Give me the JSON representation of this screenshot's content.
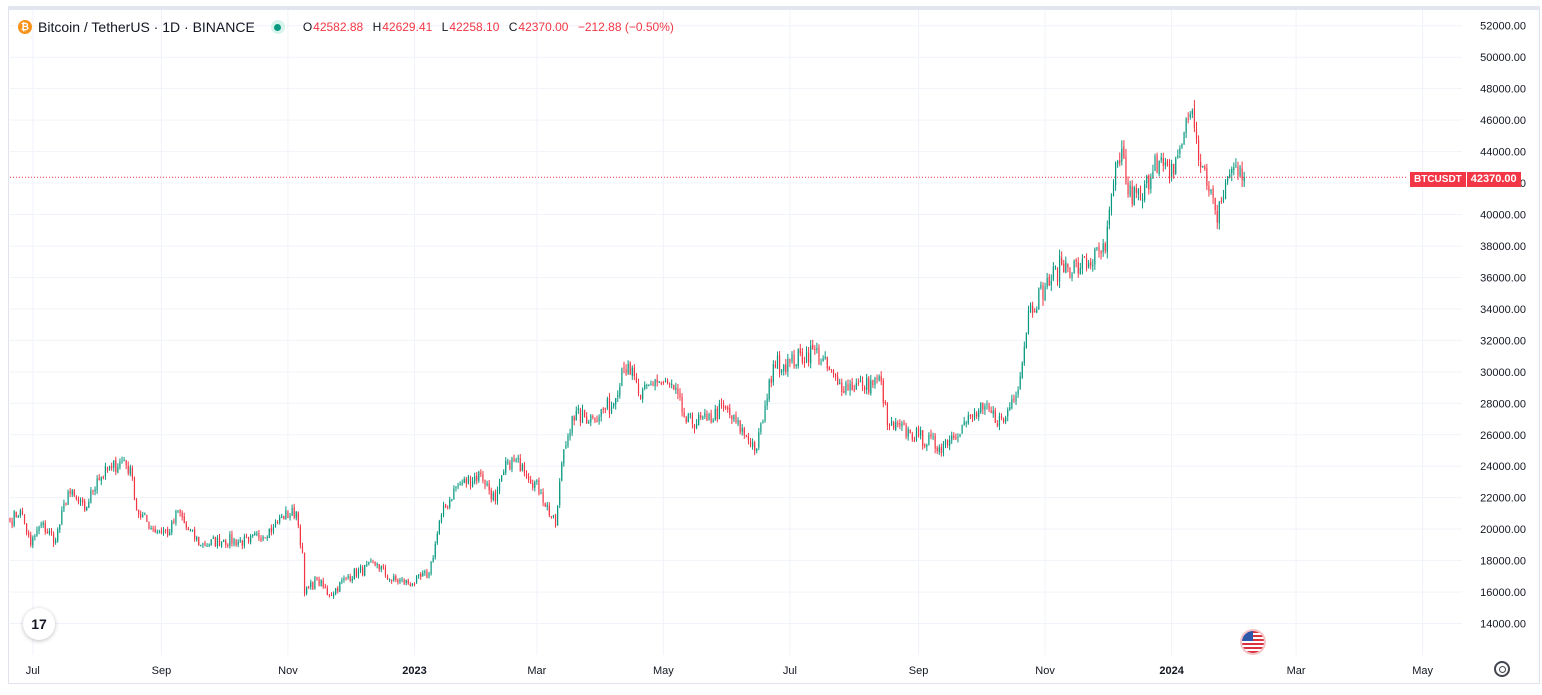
{
  "header": {
    "symbol_title": "Bitcoin / TetherUS · 1D · BINANCE",
    "coin_icon_glyph": "₿",
    "ohlc": {
      "open_key": "O",
      "open": "42582.88",
      "high_key": "H",
      "high": "42629.41",
      "low_key": "L",
      "low": "42258.10",
      "close_key": "C",
      "close": "42370.00",
      "change": "−212.88 (−0.50%)"
    }
  },
  "price_badge": {
    "symbol": "BTCUSDT",
    "value": "42370.00"
  },
  "logo_text": "17",
  "icons": [
    "bitcoin-icon",
    "status-dot-icon",
    "tradingview-logo-icon",
    "us-flag-icon",
    "settings-icon"
  ],
  "colors": {
    "up": "#089981",
    "down": "#f23645",
    "grid": "#f0f3fa",
    "text": "#131722"
  },
  "chart_data": {
    "type": "candlestick",
    "ylim": [
      12000,
      53000
    ],
    "y_ticks": [
      14000,
      16000,
      18000,
      20000,
      22000,
      24000,
      26000,
      28000,
      30000,
      32000,
      34000,
      36000,
      38000,
      40000,
      42000,
      44000,
      46000,
      48000,
      50000,
      52000
    ],
    "y_tick_labels": [
      "14000.00",
      "16000.00",
      "18000.00",
      "20000.00",
      "22000.00",
      "24000.00",
      "26000.00",
      "28000.00",
      "30000.00",
      "32000.00",
      "34000.00",
      "36000.00",
      "38000.00",
      "40000.00",
      "42000.00",
      "44000.00",
      "46000.00",
      "48000.00",
      "50000.00",
      "52000.00"
    ],
    "x_start": "2022-06-20",
    "x_end": "2024-05-20",
    "x_ticks": [
      {
        "date": "2022-07-01",
        "label": "Jul",
        "bold": false
      },
      {
        "date": "2022-09-01",
        "label": "Sep",
        "bold": false
      },
      {
        "date": "2022-11-01",
        "label": "Nov",
        "bold": false
      },
      {
        "date": "2023-01-01",
        "label": "2023",
        "bold": true
      },
      {
        "date": "2023-03-01",
        "label": "Mar",
        "bold": false
      },
      {
        "date": "2023-05-01",
        "label": "May",
        "bold": false
      },
      {
        "date": "2023-07-01",
        "label": "Jul",
        "bold": false
      },
      {
        "date": "2023-09-01",
        "label": "Sep",
        "bold": false
      },
      {
        "date": "2023-11-01",
        "label": "Nov",
        "bold": false
      },
      {
        "date": "2024-01-01",
        "label": "2024",
        "bold": true
      },
      {
        "date": "2024-03-01",
        "label": "Mar",
        "bold": false
      },
      {
        "date": "2024-05-01",
        "label": "May",
        "bold": false
      }
    ],
    "last_price": 42370.0,
    "series_close_anchors": [
      [
        "2022-06-20",
        20500
      ],
      [
        "2022-06-25",
        21200
      ],
      [
        "2022-06-30",
        19000
      ],
      [
        "2022-07-05",
        20300
      ],
      [
        "2022-07-12",
        19300
      ],
      [
        "2022-07-18",
        22400
      ],
      [
        "2022-07-26",
        21200
      ],
      [
        "2022-08-01",
        23200
      ],
      [
        "2022-08-08",
        23900
      ],
      [
        "2022-08-14",
        24400
      ],
      [
        "2022-08-18",
        23300
      ],
      [
        "2022-08-20",
        21200
      ],
      [
        "2022-08-28",
        20000
      ],
      [
        "2022-09-05",
        19800
      ],
      [
        "2022-09-09",
        21200
      ],
      [
        "2022-09-13",
        20100
      ],
      [
        "2022-09-20",
        19000
      ],
      [
        "2022-10-01",
        19300
      ],
      [
        "2022-10-13",
        19200
      ],
      [
        "2022-10-25",
        20100
      ],
      [
        "2022-10-29",
        20800
      ],
      [
        "2022-11-05",
        21100
      ],
      [
        "2022-11-08",
        18500
      ],
      [
        "2022-11-09",
        15900
      ],
      [
        "2022-11-15",
        16800
      ],
      [
        "2022-11-21",
        15800
      ],
      [
        "2022-11-30",
        17000
      ],
      [
        "2022-12-14",
        17800
      ],
      [
        "2022-12-20",
        16800
      ],
      [
        "2022-12-31",
        16550
      ],
      [
        "2023-01-08",
        17200
      ],
      [
        "2023-01-14",
        20900
      ],
      [
        "2023-01-21",
        22700
      ],
      [
        "2023-02-02",
        23500
      ],
      [
        "2023-02-09",
        21800
      ],
      [
        "2023-02-15",
        24300
      ],
      [
        "2023-02-22",
        24100
      ],
      [
        "2023-03-03",
        22300
      ],
      [
        "2023-03-10",
        20200
      ],
      [
        "2023-03-13",
        24200
      ],
      [
        "2023-03-18",
        27200
      ],
      [
        "2023-03-28",
        27100
      ],
      [
        "2023-04-07",
        28000
      ],
      [
        "2023-04-11",
        30200
      ],
      [
        "2023-04-14",
        30500
      ],
      [
        "2023-04-20",
        28300
      ],
      [
        "2023-04-27",
        29500
      ],
      [
        "2023-05-06",
        28900
      ],
      [
        "2023-05-12",
        26800
      ],
      [
        "2023-05-22",
        26900
      ],
      [
        "2023-05-30",
        27700
      ],
      [
        "2023-06-10",
        25900
      ],
      [
        "2023-06-15",
        25100
      ],
      [
        "2023-06-20",
        28300
      ],
      [
        "2023-06-23",
        30500
      ],
      [
        "2023-07-01",
        30600
      ],
      [
        "2023-07-13",
        31400
      ],
      [
        "2023-07-24",
        29200
      ],
      [
        "2023-08-05",
        29100
      ],
      [
        "2023-08-14",
        29400
      ],
      [
        "2023-08-17",
        26600
      ],
      [
        "2023-08-28",
        26100
      ],
      [
        "2023-09-01",
        25900
      ],
      [
        "2023-09-11",
        25200
      ],
      [
        "2023-09-22",
        26600
      ],
      [
        "2023-10-02",
        27600
      ],
      [
        "2023-10-12",
        26800
      ],
      [
        "2023-10-20",
        29700
      ],
      [
        "2023-10-24",
        33900
      ],
      [
        "2023-11-01",
        35400
      ],
      [
        "2023-11-09",
        36800
      ],
      [
        "2023-11-18",
        36600
      ],
      [
        "2023-11-30",
        37700
      ],
      [
        "2023-12-04",
        41900
      ],
      [
        "2023-12-08",
        44200
      ],
      [
        "2023-12-11",
        41300
      ],
      [
        "2023-12-18",
        41000
      ],
      [
        "2023-12-24",
        43700
      ],
      [
        "2023-12-31",
        42300
      ],
      [
        "2024-01-05",
        44200
      ],
      [
        "2024-01-09",
        46100
      ],
      [
        "2024-01-11",
        46600
      ],
      [
        "2024-01-15",
        43000
      ],
      [
        "2024-01-20",
        41600
      ],
      [
        "2024-01-23",
        39500
      ],
      [
        "2024-01-27",
        42000
      ],
      [
        "2024-02-01",
        43100
      ],
      [
        "2024-02-03",
        43000
      ],
      [
        "2024-02-05",
        42370
      ]
    ]
  }
}
